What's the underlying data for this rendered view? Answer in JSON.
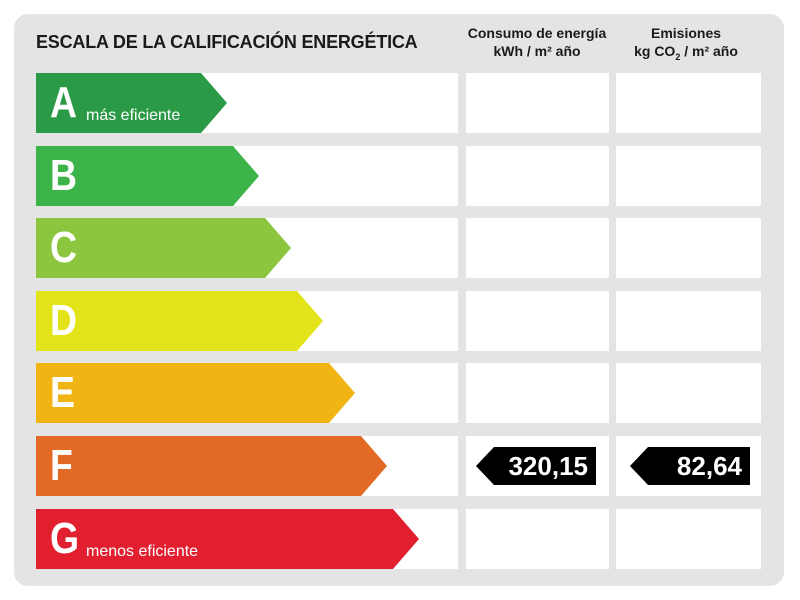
{
  "title": "ESCALA DE LA CALIFICACIÓN ENERGÉTICA",
  "columns": {
    "energy": {
      "line1": "Consumo de energía",
      "line2": "kWh / m² año"
    },
    "emissions": {
      "line1": "Emisiones",
      "line2_pre": "kg CO",
      "line2_sub": "2",
      "line2_post": " / m² año"
    }
  },
  "bands": [
    {
      "letter": "A",
      "note": "más eficiente",
      "color": "#2b9a47"
    },
    {
      "letter": "B",
      "note": "",
      "color": "#3db449"
    },
    {
      "letter": "C",
      "note": "",
      "color": "#8cc63f"
    },
    {
      "letter": "D",
      "note": "",
      "color": "#e2e419"
    },
    {
      "letter": "E",
      "note": "",
      "color": "#f0b415"
    },
    {
      "letter": "F",
      "note": "",
      "color": "#e26a24"
    },
    {
      "letter": "G",
      "note": "menos eficiente",
      "color": "#e11f2f"
    }
  ],
  "rating": {
    "letter": "F",
    "energy_value": "320,15",
    "emissions_value": "82,64",
    "tag_color": "#000000"
  }
}
